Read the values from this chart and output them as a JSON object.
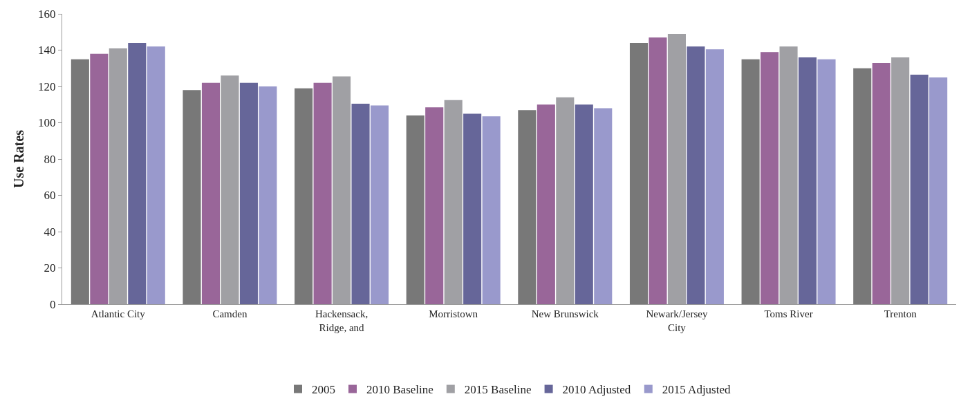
{
  "chart_data": {
    "type": "bar",
    "ylabel": "Use Rates",
    "categories": [
      "Atlantic City",
      "Camden",
      "Hackensack, Ridge, and",
      "Morristown",
      "New Brunswick",
      "Newark/Jersey City",
      "Toms River",
      "Trenton"
    ],
    "series": [
      {
        "name": "2005",
        "color": "#787878",
        "values": [
          135,
          118,
          119,
          104,
          107,
          144,
          135,
          130
        ]
      },
      {
        "name": "2010 Baseline",
        "color": "#996699",
        "values": [
          138,
          122,
          122,
          108.5,
          110,
          147,
          139,
          133
        ]
      },
      {
        "name": "2015 Baseline",
        "color": "#a0a0a4",
        "values": [
          141,
          126,
          125.5,
          112.5,
          114,
          149,
          142,
          136
        ]
      },
      {
        "name": "2010 Adjusted",
        "color": "#666699",
        "values": [
          144,
          122,
          110.5,
          105,
          110,
          142,
          136,
          126.5
        ]
      },
      {
        "name": "2015 Adjusted",
        "color": "#9999cc",
        "values": [
          142,
          120,
          109.5,
          103.5,
          108,
          140.5,
          135,
          125
        ]
      }
    ],
    "ylim": [
      0,
      160
    ],
    "yticks": [
      0,
      20,
      40,
      60,
      80,
      100,
      120,
      140,
      160
    ],
    "legend": "bottom"
  }
}
